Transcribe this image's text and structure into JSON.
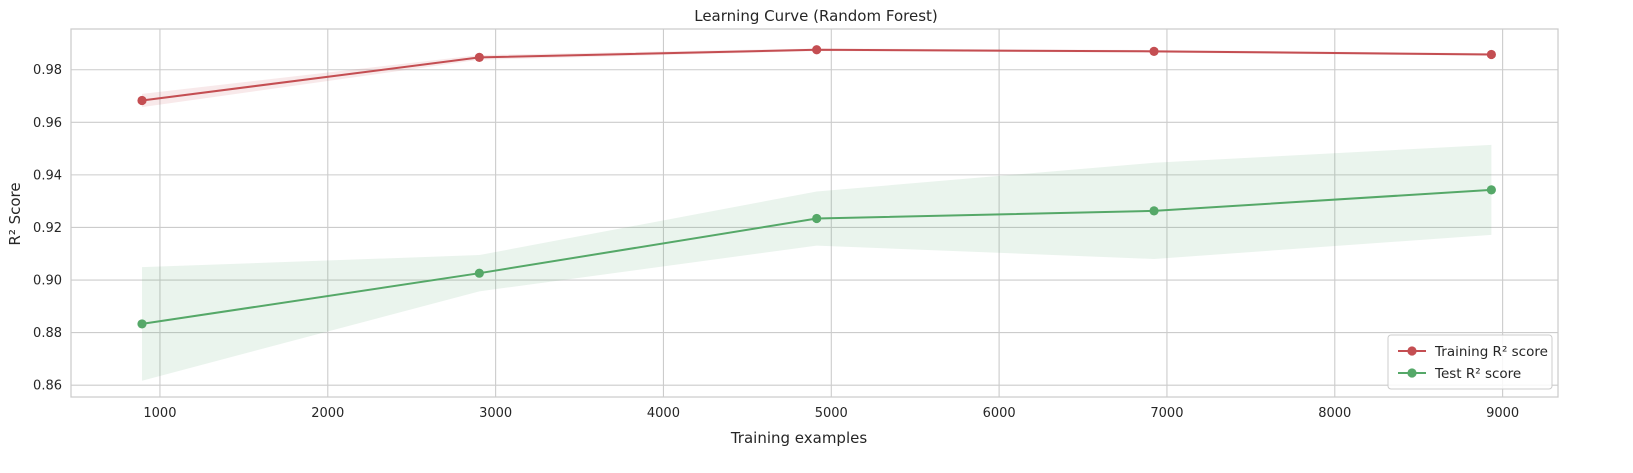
{
  "chart_data": {
    "type": "line",
    "title": "Learning Curve (Random Forest)",
    "xlabel": "Training examples",
    "ylabel": "R² Score",
    "xlim": [
      470,
      9330
    ],
    "ylim": [
      0.8555,
      0.9955
    ],
    "xticks": [
      1000,
      2000,
      3000,
      4000,
      5000,
      6000,
      7000,
      8000,
      9000
    ],
    "yticks": [
      0.86,
      0.88,
      0.9,
      0.92,
      0.94,
      0.96,
      0.98
    ],
    "ytick_labels": [
      "0.86",
      "0.88",
      "0.90",
      "0.92",
      "0.94",
      "0.96",
      "0.98"
    ],
    "grid": true,
    "legend_position": "lower-right",
    "x": [
      893,
      2903,
      4913,
      6923,
      8933
    ],
    "series": [
      {
        "name": "Training R² score",
        "color": "#c44e52",
        "values": [
          0.9683,
          0.9847,
          0.9876,
          0.987,
          0.9858
        ],
        "lower": [
          0.9658,
          0.9838,
          0.9871,
          0.9865,
          0.9853
        ],
        "upper": [
          0.9708,
          0.9856,
          0.9881,
          0.9875,
          0.9863
        ]
      },
      {
        "name": "Test R² score",
        "color": "#55a868",
        "values": [
          0.8833,
          0.9026,
          0.9234,
          0.9263,
          0.9343
        ],
        "lower": [
          0.8617,
          0.8957,
          0.9131,
          0.908,
          0.9172
        ],
        "upper": [
          0.9049,
          0.9095,
          0.9337,
          0.9446,
          0.9514
        ]
      }
    ]
  }
}
